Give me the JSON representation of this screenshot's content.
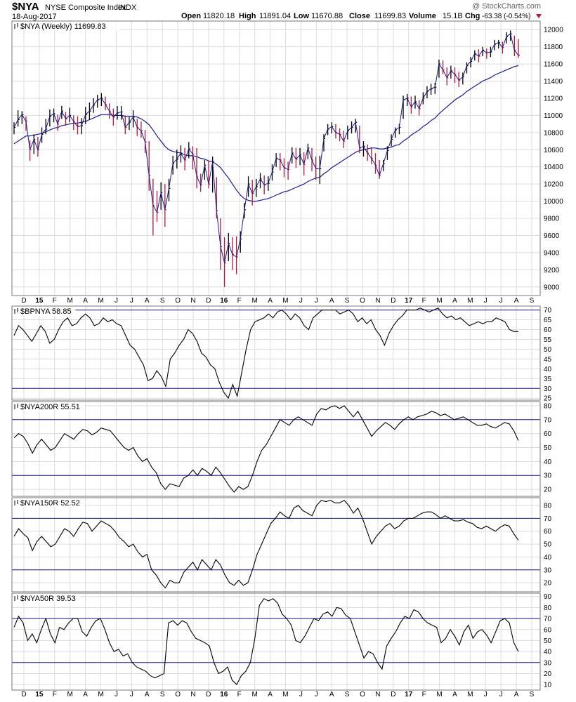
{
  "header": {
    "symbol": "$NYA",
    "name": "NYSE Composite Index",
    "exchange": "INDX",
    "watermark": "@ StockCharts.com",
    "date": "18-Aug-2017",
    "open_label": "Open",
    "open": "11820.18",
    "high_label": "High",
    "high": "11891.04",
    "low_label": "Low",
    "low": "11670.88",
    "close_label": "Close",
    "close": "11699.83",
    "volume_label": "Volume",
    "volume": "15.1B",
    "chg_label": "Chg",
    "chg": "-63.38 (-0.54%)",
    "chg_color": "#b0193f"
  },
  "x_axis_labels": [
    {
      "label": "D",
      "bold": false
    },
    {
      "label": "15",
      "bold": true
    },
    {
      "label": "F",
      "bold": false
    },
    {
      "label": "M",
      "bold": false
    },
    {
      "label": "A",
      "bold": false
    },
    {
      "label": "M",
      "bold": false
    },
    {
      "label": "J",
      "bold": false
    },
    {
      "label": "J",
      "bold": false
    },
    {
      "label": "A",
      "bold": false
    },
    {
      "label": "S",
      "bold": false
    },
    {
      "label": "O",
      "bold": false
    },
    {
      "label": "N",
      "bold": false
    },
    {
      "label": "D",
      "bold": false
    },
    {
      "label": "16",
      "bold": true
    },
    {
      "label": "F",
      "bold": false
    },
    {
      "label": "M",
      "bold": false
    },
    {
      "label": "A",
      "bold": false
    },
    {
      "label": "M",
      "bold": false
    },
    {
      "label": "J",
      "bold": false
    },
    {
      "label": "J",
      "bold": false
    },
    {
      "label": "A",
      "bold": false
    },
    {
      "label": "S",
      "bold": false
    },
    {
      "label": "O",
      "bold": false
    },
    {
      "label": "N",
      "bold": false
    },
    {
      "label": "D",
      "bold": false
    },
    {
      "label": "17",
      "bold": true
    },
    {
      "label": "F",
      "bold": false
    },
    {
      "label": "M",
      "bold": false
    },
    {
      "label": "A",
      "bold": false
    },
    {
      "label": "M",
      "bold": false
    },
    {
      "label": "J",
      "bold": false
    },
    {
      "label": "J",
      "bold": false
    },
    {
      "label": "A",
      "bold": false
    },
    {
      "label": "S",
      "bold": false
    }
  ],
  "colors": {
    "up_bar": "#000000",
    "down_bar": "#b0193f",
    "price_line": "#1a1a8c",
    "ma_line": "#1a1a8c",
    "ref_line": "#1a1a8c",
    "grid": "#dcdcdc",
    "indicator_line": "#000000"
  },
  "chart_data": [
    {
      "type": "line",
      "panel_title": "$NYA (Weekly) 11699.83",
      "ylim": [
        8900,
        12100
      ],
      "yticks": [
        9000,
        9200,
        9400,
        9600,
        9800,
        10000,
        10200,
        10400,
        10600,
        10800,
        11000,
        11200,
        11400,
        11600,
        11800,
        12000
      ],
      "close": [
        10860,
        10950,
        11010,
        10930,
        10600,
        10720,
        10600,
        10780,
        10840,
        10990,
        11020,
        10900,
        11050,
        10960,
        11000,
        10930,
        10870,
        10880,
        11010,
        11050,
        11120,
        11180,
        11200,
        11130,
        11050,
        10980,
        11030,
        11040,
        10860,
        10920,
        10980,
        10860,
        10820,
        10690,
        10300,
        9950,
        9870,
        10100,
        9900,
        10150,
        10440,
        10490,
        10560,
        10480,
        10610,
        10550,
        10290,
        10190,
        10420,
        10200,
        10460,
        9890,
        9470,
        9280,
        9510,
        9380,
        9350,
        9560,
        9900,
        10200,
        10090,
        10170,
        10260,
        10190,
        10210,
        10340,
        10500,
        10480,
        10390,
        10370,
        10560,
        10490,
        10540,
        10430,
        10620,
        10480,
        10380,
        10380,
        10730,
        10840,
        10870,
        10800,
        10780,
        10700,
        10820,
        10860,
        10920,
        10620,
        10640,
        10560,
        10500,
        10420,
        10300,
        10440,
        10590,
        10720,
        10830,
        10860,
        11180,
        11200,
        11100,
        11160,
        11080,
        11200,
        11280,
        11310,
        11330,
        11600,
        11530,
        11440,
        11520,
        11480,
        11410,
        11450,
        11580,
        11630,
        11720,
        11690,
        11760,
        11730,
        11740,
        11830,
        11850,
        11790,
        11920,
        11950,
        11760,
        11700
      ],
      "high": [
        10920,
        11060,
        11050,
        10990,
        10710,
        10780,
        10750,
        10860,
        10960,
        11070,
        11080,
        11010,
        11110,
        11040,
        11090,
        11000,
        10990,
        10970,
        11100,
        11150,
        11200,
        11240,
        11260,
        11220,
        11140,
        11080,
        11110,
        11110,
        11000,
        10980,
        11060,
        10960,
        10930,
        10830,
        10700,
        10260,
        10120,
        10220,
        10200,
        10260,
        10530,
        10600,
        10650,
        10620,
        10690,
        10640,
        10620,
        10320,
        10480,
        10470,
        10520,
        10280,
        9800,
        9580,
        9630,
        9580,
        9590,
        9650,
        9980,
        10290,
        10250,
        10260,
        10330,
        10300,
        10290,
        10430,
        10560,
        10560,
        10500,
        10460,
        10630,
        10620,
        10620,
        10570,
        10670,
        10620,
        10520,
        10530,
        10780,
        10900,
        10920,
        10900,
        10850,
        10820,
        10880,
        10930,
        10960,
        10880,
        10700,
        10660,
        10630,
        10560,
        10480,
        10480,
        10640,
        10780,
        10860,
        10900,
        11230,
        11250,
        11220,
        11230,
        11180,
        11270,
        11340,
        11370,
        11380,
        11650,
        11640,
        11560,
        11580,
        11560,
        11510,
        11500,
        11620,
        11680,
        11760,
        11770,
        11800,
        11780,
        11800,
        11880,
        11880,
        11860,
        11970,
        11990,
        11930,
        11890
      ],
      "low": [
        10780,
        10870,
        10900,
        10820,
        10470,
        10550,
        10520,
        10680,
        10780,
        10870,
        10920,
        10820,
        10960,
        10880,
        10920,
        10830,
        10780,
        10780,
        10900,
        10950,
        11030,
        11090,
        11110,
        11060,
        10960,
        10880,
        10950,
        10950,
        10780,
        10830,
        10860,
        10760,
        10740,
        10560,
        10120,
        9600,
        9760,
        9900,
        9700,
        10000,
        10310,
        10380,
        10450,
        10360,
        10500,
        10370,
        10150,
        10110,
        10250,
        10150,
        10100,
        9800,
        9200,
        9000,
        9300,
        9200,
        9150,
        9400,
        9800,
        10050,
        9950,
        10050,
        10150,
        10080,
        10120,
        10240,
        10400,
        10360,
        10280,
        10250,
        10440,
        10390,
        10420,
        10300,
        10490,
        10350,
        10250,
        10200,
        10580,
        10770,
        10790,
        10730,
        10700,
        10620,
        10720,
        10790,
        10800,
        10560,
        10520,
        10470,
        10430,
        10320,
        10260,
        10350,
        10480,
        10640,
        10740,
        10780,
        10960,
        11110,
        11020,
        11080,
        11000,
        11130,
        11200,
        11240,
        11250,
        11440,
        11480,
        11350,
        11430,
        11380,
        11330,
        11360,
        11490,
        11560,
        11640,
        11620,
        11690,
        11660,
        11680,
        11760,
        11780,
        11720,
        11840,
        11870,
        11690,
        11671
      ],
      "ma": [
        10670,
        10700,
        10730,
        10760,
        10760,
        10770,
        10780,
        10790,
        10810,
        10830,
        10850,
        10860,
        10880,
        10890,
        10900,
        10910,
        10910,
        10920,
        10930,
        10950,
        10970,
        10990,
        11010,
        11010,
        11010,
        11000,
        11000,
        11000,
        10990,
        10990,
        10990,
        10980,
        10960,
        10930,
        10890,
        10830,
        10760,
        10700,
        10640,
        10600,
        10580,
        10570,
        10560,
        10540,
        10530,
        10530,
        10520,
        10500,
        10490,
        10470,
        10460,
        10430,
        10390,
        10330,
        10270,
        10200,
        10130,
        10070,
        10030,
        10010,
        10000,
        10000,
        10010,
        10020,
        10030,
        10050,
        10070,
        10090,
        10110,
        10120,
        10140,
        10160,
        10180,
        10200,
        10230,
        10250,
        10270,
        10280,
        10320,
        10350,
        10390,
        10420,
        10450,
        10480,
        10510,
        10540,
        10570,
        10590,
        10600,
        10610,
        10620,
        10620,
        10610,
        10610,
        10620,
        10630,
        10650,
        10660,
        10700,
        10730,
        10770,
        10800,
        10830,
        10870,
        10900,
        10940,
        10970,
        11020,
        11060,
        11100,
        11140,
        11180,
        11210,
        11240,
        11280,
        11310,
        11340,
        11370,
        11400,
        11420,
        11440,
        11470,
        11490,
        11510,
        11530,
        11550,
        11570,
        11580
      ]
    },
    {
      "type": "line",
      "panel_title": "$BPNYA 58.85",
      "ylim": [
        24,
        72
      ],
      "yticks": [
        25,
        30,
        35,
        40,
        45,
        50,
        55,
        60,
        65,
        70
      ],
      "ref_lines": [
        70,
        30
      ],
      "values": [
        57,
        62,
        60,
        57,
        54,
        58,
        62,
        59,
        53,
        55,
        60,
        64,
        66,
        62,
        63,
        66,
        68,
        66,
        62,
        63,
        66,
        64,
        65,
        63,
        62,
        57,
        52,
        50,
        46,
        42,
        34,
        35,
        39,
        36,
        31,
        45,
        48,
        52,
        55,
        60,
        58,
        54,
        48,
        46,
        42,
        40,
        33,
        28,
        25,
        32,
        26,
        38,
        50,
        60,
        64,
        65,
        66,
        68,
        66,
        69,
        70,
        68,
        65,
        68,
        66,
        62,
        60,
        66,
        68,
        70,
        70,
        70,
        70,
        68,
        69,
        70,
        68,
        64,
        66,
        63,
        65,
        60,
        57,
        52,
        58,
        62,
        65,
        67,
        70,
        70,
        70,
        71,
        70,
        69,
        70,
        71,
        68,
        66,
        67,
        65,
        66,
        64,
        62,
        63,
        64,
        63,
        64,
        64,
        66,
        65,
        64,
        60,
        59,
        59
      ]
    },
    {
      "type": "line",
      "panel_title": "$NYA200R 55.51",
      "ylim": [
        15,
        83
      ],
      "yticks": [
        20,
        30,
        40,
        50,
        60,
        70,
        80
      ],
      "ref_lines": [
        70,
        30
      ],
      "values": [
        57,
        60,
        58,
        53,
        46,
        52,
        56,
        52,
        48,
        50,
        55,
        60,
        58,
        56,
        60,
        63,
        62,
        59,
        61,
        64,
        63,
        62,
        58,
        54,
        50,
        48,
        50,
        44,
        40,
        42,
        36,
        32,
        24,
        20,
        24,
        23,
        22,
        28,
        30,
        34,
        30,
        35,
        33,
        30,
        36,
        32,
        27,
        22,
        18,
        22,
        20,
        22,
        30,
        40,
        48,
        52,
        58,
        64,
        70,
        68,
        66,
        70,
        72,
        70,
        68,
        66,
        74,
        78,
        77,
        79,
        80,
        78,
        80,
        76,
        72,
        76,
        70,
        64,
        58,
        62,
        65,
        68,
        66,
        63,
        67,
        70,
        72,
        70,
        72,
        73,
        74,
        76,
        75,
        73,
        74,
        72,
        70,
        71,
        72,
        70,
        68,
        66,
        66,
        67,
        65,
        64,
        66,
        68,
        67,
        62,
        55
      ]
    },
    {
      "type": "line",
      "panel_title": "$NYA150R 52.52",
      "ylim": [
        13,
        86
      ],
      "yticks": [
        20,
        30,
        40,
        50,
        60,
        70,
        80
      ],
      "ref_lines": [
        70,
        30
      ],
      "values": [
        56,
        62,
        58,
        55,
        45,
        52,
        56,
        52,
        48,
        50,
        56,
        62,
        60,
        56,
        62,
        67,
        66,
        60,
        64,
        68,
        66,
        64,
        60,
        55,
        52,
        48,
        50,
        44,
        40,
        42,
        30,
        26,
        20,
        16,
        22,
        20,
        20,
        28,
        32,
        36,
        30,
        38,
        34,
        30,
        38,
        34,
        26,
        20,
        18,
        22,
        18,
        20,
        30,
        42,
        50,
        58,
        66,
        70,
        75,
        72,
        70,
        78,
        80,
        76,
        74,
        72,
        80,
        84,
        83,
        84,
        82,
        82,
        84,
        80,
        74,
        78,
        70,
        60,
        50,
        56,
        60,
        64,
        66,
        62,
        64,
        68,
        70,
        70,
        72,
        74,
        75,
        75,
        73,
        70,
        72,
        70,
        68,
        68,
        69,
        67,
        66,
        63,
        62,
        64,
        62,
        60,
        63,
        65,
        64,
        58,
        53
      ]
    },
    {
      "type": "line",
      "panel_title": "$NYA50R 39.53",
      "ylim": [
        5,
        93
      ],
      "yticks": [
        10,
        20,
        30,
        40,
        50,
        60,
        70,
        80,
        90
      ],
      "ref_lines": [
        70,
        30
      ],
      "values": [
        62,
        72,
        66,
        50,
        56,
        48,
        60,
        70,
        56,
        48,
        62,
        60,
        66,
        70,
        70,
        58,
        54,
        62,
        68,
        70,
        60,
        48,
        40,
        42,
        36,
        38,
        30,
        26,
        24,
        22,
        18,
        16,
        18,
        20,
        66,
        68,
        64,
        68,
        66,
        58,
        52,
        50,
        48,
        45,
        30,
        20,
        22,
        26,
        14,
        10,
        18,
        22,
        30,
        52,
        82,
        88,
        86,
        88,
        84,
        74,
        70,
        64,
        50,
        48,
        54,
        62,
        70,
        68,
        74,
        76,
        72,
        80,
        79,
        73,
        70,
        58,
        46,
        34,
        40,
        38,
        30,
        24,
        45,
        52,
        58,
        66,
        72,
        70,
        78,
        76,
        70,
        66,
        64,
        62,
        48,
        52,
        60,
        54,
        46,
        58,
        64,
        52,
        58,
        60,
        55,
        48,
        58,
        68,
        70,
        66,
        48,
        40
      ]
    }
  ]
}
